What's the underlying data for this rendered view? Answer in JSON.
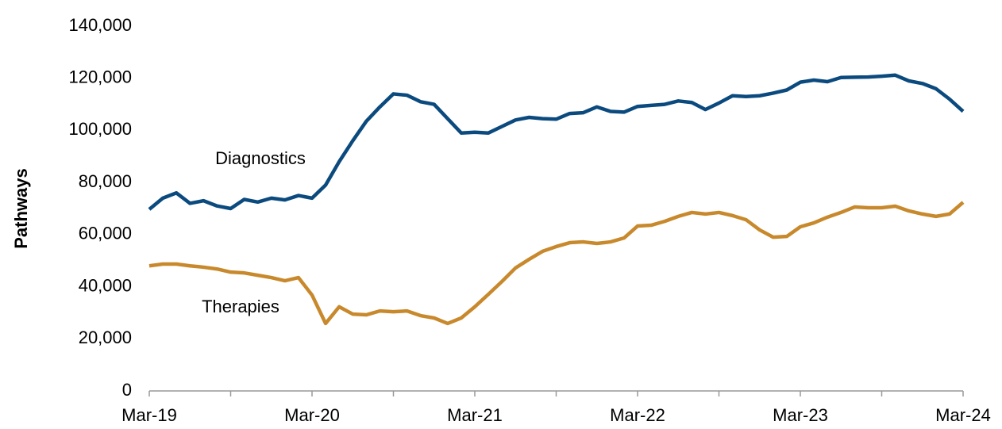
{
  "chart_data": {
    "type": "line",
    "y_label": "Pathways",
    "categories": [
      "Mar-19",
      null,
      null,
      null,
      null,
      null,
      null,
      null,
      null,
      null,
      null,
      null,
      "Mar-20",
      null,
      null,
      null,
      null,
      null,
      null,
      null,
      null,
      null,
      null,
      null,
      "Mar-21",
      null,
      null,
      null,
      null,
      null,
      null,
      null,
      null,
      null,
      null,
      null,
      "Mar-22",
      null,
      null,
      null,
      null,
      null,
      null,
      null,
      null,
      null,
      null,
      null,
      "Mar-23",
      null,
      null,
      null,
      null,
      null,
      null,
      null,
      null,
      null,
      null,
      null,
      "Mar-24"
    ],
    "series": [
      {
        "name": "Diagnostics",
        "color": "#0b4a7e",
        "values": [
          69700,
          74000,
          76000,
          72000,
          73000,
          71000,
          70000,
          73500,
          72500,
          74000,
          73300,
          75000,
          74000,
          79000,
          88000,
          96000,
          103500,
          109000,
          114000,
          113500,
          111000,
          110000,
          104500,
          99000,
          99300,
          99000,
          101500,
          104000,
          105000,
          104500,
          104300,
          106500,
          106800,
          109000,
          107300,
          107000,
          109200,
          109600,
          110000,
          111300,
          110700,
          108000,
          110500,
          113300,
          113000,
          113300,
          114300,
          115500,
          118500,
          119300,
          118700,
          120300,
          120400,
          120500,
          120800,
          121200,
          119000,
          118000,
          116000,
          112000,
          107300
        ]
      },
      {
        "name": "Therapies",
        "color": "#c8892c",
        "values": [
          48000,
          48700,
          48700,
          48000,
          47500,
          46800,
          45600,
          45300,
          44400,
          43500,
          42300,
          43500,
          36800,
          25900,
          32300,
          29500,
          29200,
          30700,
          30400,
          30700,
          28900,
          28000,
          25900,
          28000,
          32300,
          37100,
          42000,
          47200,
          50500,
          53600,
          55400,
          56900,
          57200,
          56600,
          57200,
          58700,
          63300,
          63600,
          65100,
          67000,
          68500,
          67900,
          68500,
          67300,
          65700,
          61800,
          59000,
          59300,
          63000,
          64500,
          66700,
          68500,
          70600,
          70300,
          70300,
          70900,
          69100,
          67900,
          67000,
          67900,
          72400
        ]
      }
    ],
    "ylim": [
      0,
      140000
    ],
    "yticks": [
      0,
      {
        "value": 20000,
        "label": "20,000"
      },
      {
        "value": 40000,
        "label": "40,000"
      },
      {
        "value": 60000,
        "label": "60,000"
      },
      {
        "value": 80000,
        "label": "80,000"
      },
      {
        "value": 100000,
        "label": "100,000"
      },
      {
        "value": 120000,
        "label": "120,000"
      },
      {
        "value": 140000,
        "label": "140,000"
      }
    ],
    "grid": false
  }
}
